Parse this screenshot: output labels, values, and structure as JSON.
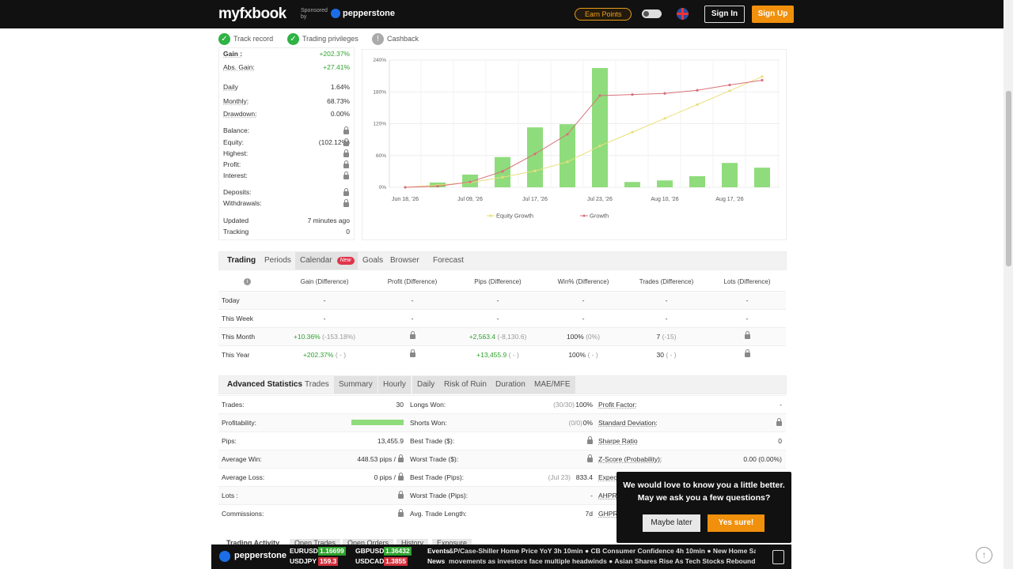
{
  "header": {
    "logo": "myfxbook",
    "sponsored": "Sponsored by",
    "sponsor": "pepperstone",
    "earn": "Earn Points",
    "sign_in": "Sign In",
    "sign_up": "Sign Up"
  },
  "badges": [
    "Track record",
    "Trading privileges",
    "Cashback"
  ],
  "stats": [
    {
      "label": "Gain :",
      "value": "+202.37%"
    },
    {
      "label": "Abs. Gain:",
      "value": "+27.41%"
    },
    {
      "label": "Daily",
      "value": "1.64%"
    },
    {
      "label": "Monthly:",
      "value": "68.73%"
    },
    {
      "label": "Drawdown:",
      "value": "0.00%"
    },
    {
      "label": "Balance:",
      "lock": true
    },
    {
      "label": "Equity:",
      "value": "(102.12%)",
      "lock": true
    },
    {
      "label": "Highest:",
      "lock": true
    },
    {
      "label": "Profit:",
      "lock": true
    },
    {
      "label": "Interest:",
      "lock": true
    },
    {
      "label": "Deposits:",
      "lock": true
    },
    {
      "label": "Withdrawals:",
      "lock": true
    },
    {
      "label": "Updated",
      "value": "7 minutes ago"
    },
    {
      "label": "Tracking",
      "value": "0"
    }
  ],
  "chart_data": {
    "type": "bar",
    "categories": [
      "Jun 18, '26",
      null,
      "Jul 09, '26",
      null,
      "Jul 17, '26",
      null,
      "Jul 23, '26",
      null,
      "Aug 10, '26",
      null,
      "Aug 17, '26",
      null
    ],
    "series": [
      {
        "color": "#8fdc7c",
        "values": [
          null,
          9,
          24,
          57,
          113,
          119,
          225,
          10,
          13,
          21,
          46,
          37
        ]
      },
      {
        "name": "Equity Growth",
        "type": "line",
        "color": "#e8e07a",
        "values": [
          0,
          4,
          9,
          19,
          31,
          48,
          78,
          104,
          130,
          156,
          182,
          209
        ]
      },
      {
        "name": "Growth",
        "type": "line",
        "color": "#d9707a",
        "values": [
          0,
          2,
          10,
          30,
          63,
          100,
          173,
          175,
          177,
          183,
          193,
          202
        ]
      }
    ],
    "ylim": [
      0,
      240
    ],
    "yticks": [
      {
        "value": 0,
        "label": "0%"
      },
      {
        "value": 60,
        "label": "60%"
      },
      {
        "value": 120,
        "label": "120%"
      },
      {
        "value": 180,
        "label": "180%"
      },
      {
        "value": 240,
        "label": "240%"
      }
    ],
    "grid": true
  },
  "trading": {
    "tabs": [
      "Trading",
      "Periods",
      "Calendar",
      "Goals",
      "Browser",
      "Forecast"
    ],
    "new_badge": "New",
    "columns": [
      "Gain (Difference)",
      "Profit (Difference)",
      "Pips (Difference)",
      "Win% (Difference)",
      "Trades (Difference)",
      "Lots (Difference)"
    ],
    "rows": [
      {
        "label": "Today",
        "cells": [
          "-",
          "-",
          "-",
          "-",
          "-",
          "-"
        ]
      },
      {
        "label": "This Week",
        "cells": [
          "-",
          "-",
          "-",
          "-",
          "-",
          "-"
        ]
      },
      {
        "label": "This Month",
        "cells": [
          [
            "+10.36%",
            "(-153.18%)"
          ],
          null,
          [
            "+2,563.4",
            "(-8,130.6)"
          ],
          [
            "100%",
            "(0%)"
          ],
          [
            "7",
            "(-15)"
          ],
          null
        ]
      },
      {
        "label": "This Year",
        "cells": [
          [
            "+202.37%",
            "( - )"
          ],
          null,
          [
            "+13,455.9",
            "( - )"
          ],
          [
            "100%",
            "( - )"
          ],
          [
            "30",
            "( - )"
          ],
          null
        ]
      }
    ]
  },
  "advanced": {
    "tabs": [
      "Advanced Statistics",
      "Trades",
      "Summary",
      "Hourly",
      "Daily",
      "Risk of Ruin",
      "Duration",
      "MAE/MFE"
    ],
    "columns": [
      [
        {
          "label": "Trades:",
          "value": "30"
        },
        {
          "label": "Profitability:",
          "bar": true
        },
        {
          "label": "Pips:",
          "value": "13,455.9"
        },
        {
          "label": "Average Win:",
          "value": "448.53 pips /",
          "lock": true
        },
        {
          "label": "Average Loss:",
          "value": "0 pips /",
          "lock": true
        },
        {
          "label": "Lots :",
          "lock": true
        },
        {
          "label": "Commissions:",
          "lock": true
        }
      ],
      [
        {
          "label": "Longs Won:",
          "note": "(30/30)",
          "value": "100%"
        },
        {
          "label": "Shorts Won:",
          "note": "(0/0)",
          "value": "0%"
        },
        {
          "label": "Best Trade ($):",
          "lock": true
        },
        {
          "label": "Worst Trade ($):",
          "lock": true
        },
        {
          "label": "Best Trade (Pips):",
          "note": "(Jul 23)",
          "value": "833.4"
        },
        {
          "label": "Worst Trade (Pips):",
          "value": "-"
        },
        {
          "label": "Avg. Trade Length:",
          "value": "7d"
        }
      ],
      [
        {
          "label": "Profit Factor:",
          "value": "-"
        },
        {
          "label": "Standard Deviation:",
          "lock": true
        },
        {
          "label": "Sharpe Ratio",
          "value": "0"
        },
        {
          "label": "Z-Score (Probability):",
          "value": "0.00 (0.00%)"
        },
        {
          "label": "Expectancy"
        },
        {
          "label": "AHPR:"
        },
        {
          "label": "GHPR:"
        }
      ]
    ],
    "bottom_tabs": [
      "Trading Activity",
      "Open Trades",
      "Open Orders",
      "History",
      "Exposure"
    ]
  },
  "popup": {
    "line1": "We would love to know you a little better.",
    "line2": "May we ask you a few questions?",
    "later": "Maybe later",
    "yes": "Yes sure!"
  },
  "ticker": {
    "brand": "pepperstone",
    "pairs": [
      {
        "name": "EURUSD",
        "value": "1.16699"
      },
      {
        "name": "GBPUSD",
        "value": "1.36432"
      },
      {
        "name": "USDJPY",
        "value": "159.3"
      },
      {
        "name": "USDCAD",
        "value": "1.3855"
      }
    ],
    "events_label": "Events",
    "events": "&P/Case-Shiller Home Price YoY  3h 10min  ● CB Consumer Confidence  4h 10min  ● New Home Sales Mo",
    "news_label": "News",
    "news": "movements as investors face multiple headwinds  ●  Asian Shares Rise As Tech Stocks Rebound Ahead O"
  }
}
